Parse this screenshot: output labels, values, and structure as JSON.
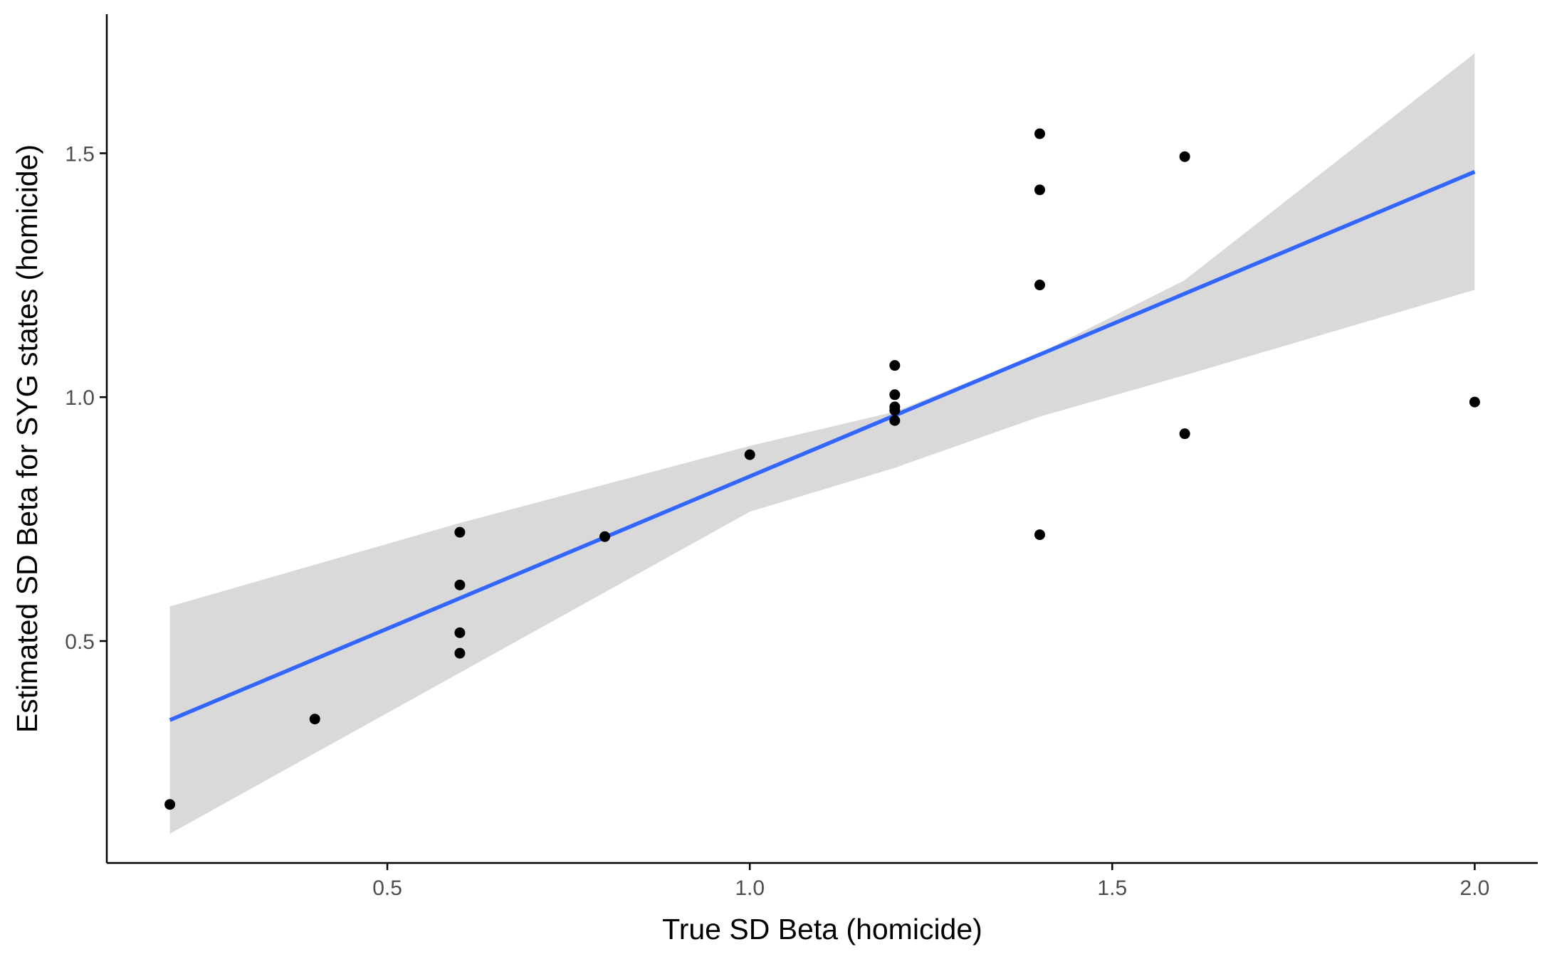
{
  "chart_data": {
    "type": "scatter",
    "title": "",
    "xlabel": "True SD Beta (homicide)",
    "ylabel": "Estimated SD Beta for SYG states (homicide)",
    "xlim": [
      0.113,
      2.087
    ],
    "ylim": [
      0.045,
      1.785
    ],
    "x_ticks": [
      {
        "value": 0.5,
        "label": "0.5"
      },
      {
        "value": 1.0,
        "label": "1.0"
      },
      {
        "value": 1.5,
        "label": "1.5"
      },
      {
        "value": 2.0,
        "label": "2.0"
      }
    ],
    "y_ticks": [
      {
        "value": 0.5,
        "label": "0.5"
      },
      {
        "value": 1.0,
        "label": "1.0"
      },
      {
        "value": 1.5,
        "label": "1.5"
      }
    ],
    "grid": false,
    "legend": "none",
    "points": [
      {
        "x": 0.2,
        "y": 0.165
      },
      {
        "x": 0.4,
        "y": 0.34
      },
      {
        "x": 0.6,
        "y": 0.475
      },
      {
        "x": 0.6,
        "y": 0.517
      },
      {
        "x": 0.6,
        "y": 0.615
      },
      {
        "x": 0.6,
        "y": 0.723
      },
      {
        "x": 0.8,
        "y": 0.714
      },
      {
        "x": 1.0,
        "y": 0.882
      },
      {
        "x": 1.2,
        "y": 0.952
      },
      {
        "x": 1.2,
        "y": 0.973
      },
      {
        "x": 1.2,
        "y": 0.98
      },
      {
        "x": 1.2,
        "y": 1.005
      },
      {
        "x": 1.2,
        "y": 1.065
      },
      {
        "x": 1.4,
        "y": 0.718
      },
      {
        "x": 1.4,
        "y": 1.23
      },
      {
        "x": 1.4,
        "y": 1.425
      },
      {
        "x": 1.4,
        "y": 1.54
      },
      {
        "x": 1.6,
        "y": 0.925
      },
      {
        "x": 1.6,
        "y": 1.493
      },
      {
        "x": 2.0,
        "y": 0.99
      }
    ],
    "fit_line": {
      "method": "linear",
      "x": [
        0.2,
        2.0
      ],
      "y": [
        0.338,
        1.462
      ]
    },
    "confidence_band": {
      "x": [
        0.2,
        0.6,
        1.0,
        1.2,
        1.4,
        1.6,
        2.0
      ],
      "lower": [
        0.105,
        0.435,
        0.765,
        0.855,
        0.96,
        1.045,
        1.22
      ],
      "upper": [
        0.571,
        0.742,
        0.9,
        0.97,
        1.09,
        1.24,
        1.705
      ]
    },
    "colors": {
      "points": "#000000",
      "fit_line": "#3366FF",
      "band": "#D9D9D9",
      "axis": "#000000",
      "tick_label": "#4D4D4D"
    }
  }
}
